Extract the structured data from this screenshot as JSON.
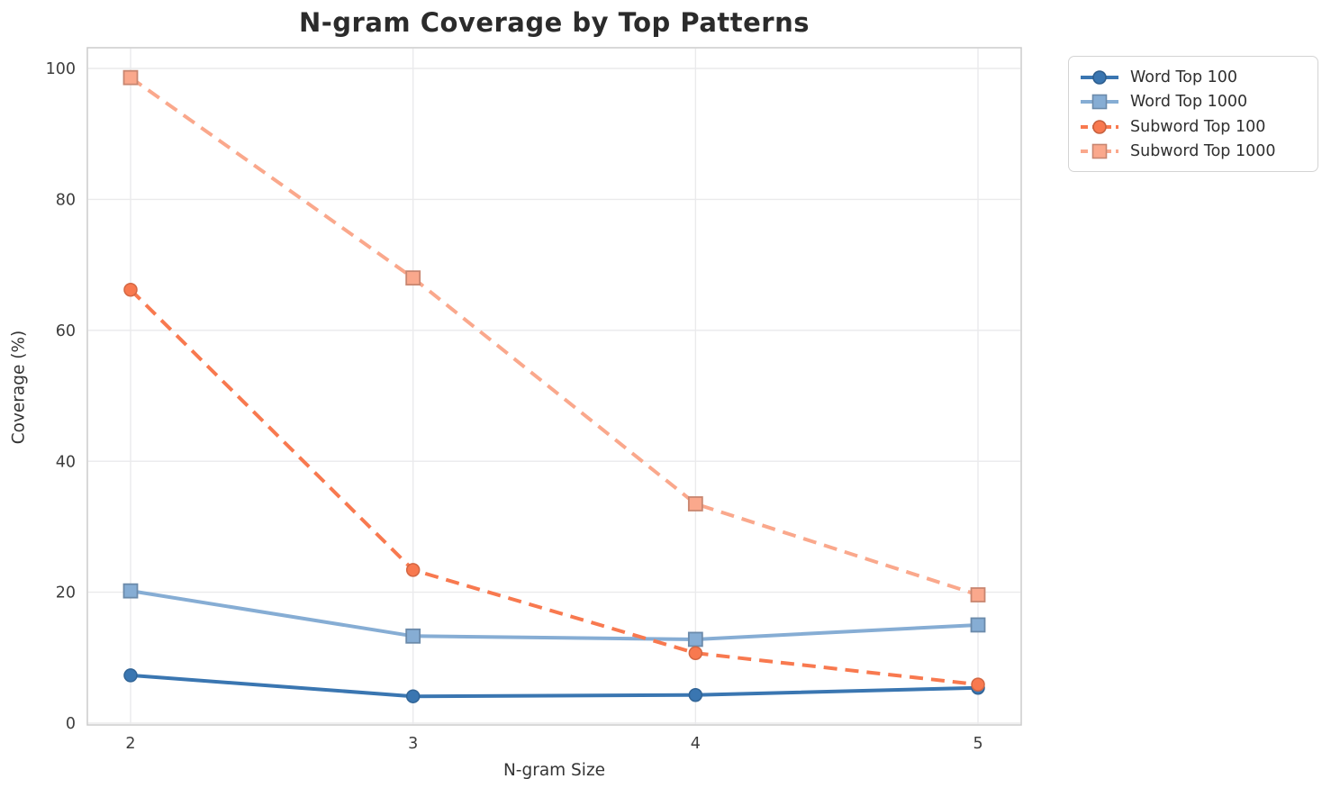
{
  "chart_data": {
    "type": "line",
    "title": "N-gram Coverage by Top Patterns",
    "xlabel": "N-gram Size",
    "ylabel": "Coverage (%)",
    "x": [
      2,
      3,
      4,
      5
    ],
    "x_tick_labels": [
      "2",
      "3",
      "4",
      "5"
    ],
    "y_ticks": [
      0,
      20,
      40,
      60,
      80,
      100
    ],
    "y_tick_labels": [
      "0",
      "20",
      "40",
      "60",
      "80",
      "100"
    ],
    "ylim": [
      0,
      100
    ],
    "grid": true,
    "legend_position": "outside-upper-right",
    "series": [
      {
        "name": "Word Top 100",
        "values": [
          7.3,
          4.1,
          4.3,
          5.4
        ],
        "color": "#3a76b1",
        "line_style": "solid",
        "marker": "circle"
      },
      {
        "name": "Word Top 1000",
        "values": [
          20.2,
          13.3,
          12.8,
          15.0
        ],
        "color": "#86add4",
        "line_style": "solid",
        "marker": "square"
      },
      {
        "name": "Subword Top 100",
        "values": [
          66.2,
          23.4,
          10.7,
          5.9
        ],
        "color": "#f8794f",
        "line_style": "dashed",
        "marker": "circle"
      },
      {
        "name": "Subword Top 1000",
        "values": [
          98.6,
          68.0,
          33.5,
          19.6
        ],
        "color": "#faa88c",
        "line_style": "dashed",
        "marker": "square"
      }
    ],
    "style": {
      "grid_color": "#eaeaec",
      "spine_color": "#cccccc",
      "tick_color": "#3d3d3d",
      "title_color": "#2b2b2b",
      "background": "#ffffff"
    }
  }
}
